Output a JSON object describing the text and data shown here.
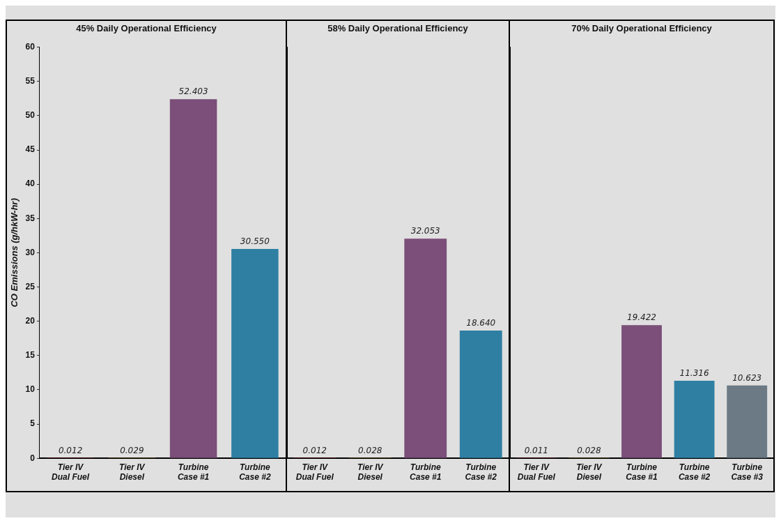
{
  "chart_data": [
    {
      "type": "bar",
      "title": "45% Daily Operational Efficiency",
      "ylabel": "CO Emissions (g/hkW-hr)",
      "categories": [
        "Tier IV Dual Fuel",
        "Tier IV Diesel",
        "Turbine Case #1",
        "Turbine Case #2"
      ],
      "values": [
        0.012,
        0.029,
        52.403,
        30.55
      ],
      "value_labels": [
        "0.012",
        "0.029",
        "52.403",
        "30.550"
      ],
      "colors": [
        "#e8303a",
        "#f5b335",
        "#7b4f7a",
        "#2f7fa3"
      ],
      "ylim": [
        0,
        60
      ],
      "yticks": [
        0,
        5,
        10,
        15,
        20,
        25,
        30,
        35,
        40,
        45,
        50,
        55,
        60
      ],
      "grid": false,
      "legend": false
    },
    {
      "type": "bar",
      "title": "58% Daily Operational Efficiency",
      "categories": [
        "Tier IV Dual Fuel",
        "Tier IV Diesel",
        "Turbine Case #1",
        "Turbine Case #2"
      ],
      "values": [
        0.012,
        0.028,
        32.053,
        18.64
      ],
      "value_labels": [
        "0.012",
        "0.028",
        "32.053",
        "18.640"
      ],
      "colors": [
        "#e8303a",
        "#f5b335",
        "#7b4f7a",
        "#2f7fa3"
      ],
      "ylim": [
        0,
        60
      ],
      "yticks": [
        0,
        5,
        10,
        15,
        20,
        25,
        30,
        35,
        40,
        45,
        50,
        55,
        60
      ],
      "tick_labels": "x",
      "grid": false,
      "legend": false
    },
    {
      "type": "bar",
      "title": "70% Daily Operational Efficiency",
      "categories": [
        "Tier IV Dual Fuel",
        "Tier IV Diesel",
        "Turbine Case #1",
        "Turbine Case #2",
        "Turbine Case #3"
      ],
      "values": [
        0.011,
        0.028,
        19.422,
        11.316,
        10.623
      ],
      "value_labels": [
        "0.011",
        "0.028",
        "19.422",
        "11.316",
        "10.623"
      ],
      "colors": [
        "#e8303a",
        "#f5b335",
        "#7b4f7a",
        "#2f7fa3",
        "#6b7a84"
      ],
      "ylim": [
        0,
        60
      ],
      "yticks": [
        0,
        5,
        10,
        15,
        20,
        25,
        30,
        35,
        40,
        45,
        50,
        55,
        60
      ],
      "tick_labels": "x",
      "grid": false,
      "legend": false
    }
  ]
}
